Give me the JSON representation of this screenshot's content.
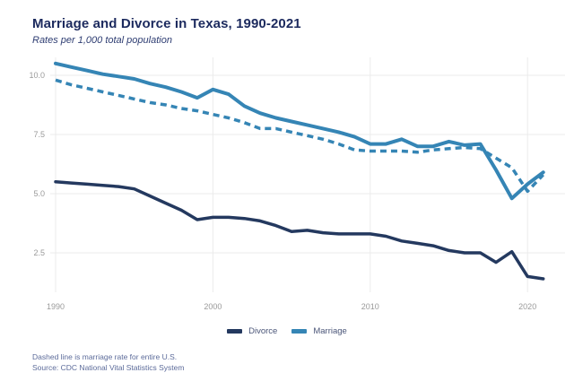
{
  "page": {
    "title": "Marriage and Divorce in Texas, 1990-2021",
    "subtitle": "Rates per 1,000 total population",
    "footnote": "Dashed line is marriage rate for entire U.S.",
    "source": "Source: CDC National Vital Statistics System"
  },
  "legend": {
    "items": [
      {
        "label": "Divorce",
        "color": "#24395f"
      },
      {
        "label": "Marriage",
        "color": "#3585b5"
      }
    ]
  },
  "colors": {
    "navy": "#24395f",
    "teal": "#3585b5",
    "title_text": "#1c2a5e",
    "gridline": "#ebebeb",
    "tick_label": "#9a9a9a",
    "footnote_text": "#5c6b9a"
  },
  "chart_data": {
    "type": "line",
    "title": "Marriage and Divorce in Texas, 1990-2021",
    "subtitle": "Rates per 1,000 total population",
    "xlabel": "",
    "ylabel": "Rates per 1,000 total population",
    "grid": true,
    "legend_position": "bottom",
    "xlim": [
      1990,
      2021
    ],
    "ylim": [
      0.9,
      10.8
    ],
    "x_ticks": [
      1990,
      2000,
      2010,
      2020
    ],
    "x_tick_labels": [
      "1990",
      "2000",
      "2010",
      "2020"
    ],
    "y_ticks": [
      2.5,
      5.0,
      7.5,
      10.0
    ],
    "y_tick_labels": [
      "2.5",
      "5.0",
      "7.5",
      "10.0"
    ],
    "x": [
      1990,
      1991,
      1992,
      1993,
      1994,
      1995,
      1996,
      1997,
      1998,
      1999,
      2000,
      2001,
      2002,
      2003,
      2004,
      2005,
      2006,
      2007,
      2008,
      2009,
      2010,
      2011,
      2012,
      2013,
      2014,
      2015,
      2016,
      2017,
      2018,
      2019,
      2020,
      2021
    ],
    "series": [
      {
        "name": "Divorce (Texas)",
        "style": "solid",
        "color": "#24395f",
        "stroke_width": 3.5,
        "values": [
          5.5,
          5.45,
          5.4,
          5.35,
          5.3,
          5.2,
          4.9,
          4.6,
          4.3,
          3.9,
          4.0,
          4.0,
          3.95,
          3.85,
          3.65,
          3.4,
          3.45,
          3.35,
          3.3,
          3.3,
          3.3,
          3.2,
          3.0,
          2.9,
          2.8,
          2.6,
          2.5,
          2.5,
          2.1,
          2.55,
          1.5,
          1.4
        ]
      },
      {
        "name": "Marriage (entire U.S., dashed)",
        "style": "dashed",
        "color": "#3585b5",
        "stroke_width": 3.5,
        "values": [
          9.8,
          9.6,
          9.45,
          9.3,
          9.15,
          9.0,
          8.85,
          8.75,
          8.6,
          8.5,
          8.35,
          8.2,
          8.0,
          7.75,
          7.75,
          7.6,
          7.45,
          7.3,
          7.1,
          6.85,
          6.8,
          6.8,
          6.8,
          6.75,
          6.85,
          6.9,
          6.95,
          6.9,
          6.5,
          6.1,
          5.1,
          5.8
        ]
      },
      {
        "name": "Marriage (Texas)",
        "style": "solid",
        "color": "#3585b5",
        "stroke_width": 4,
        "values": [
          10.5,
          10.35,
          10.2,
          10.05,
          9.95,
          9.85,
          9.65,
          9.5,
          9.3,
          9.05,
          9.4,
          9.2,
          8.7,
          8.4,
          8.2,
          8.05,
          7.9,
          7.75,
          7.6,
          7.4,
          7.1,
          7.1,
          7.3,
          7.0,
          7.0,
          7.2,
          7.05,
          7.1,
          6.0,
          4.8,
          5.4,
          5.9
        ]
      }
    ]
  }
}
